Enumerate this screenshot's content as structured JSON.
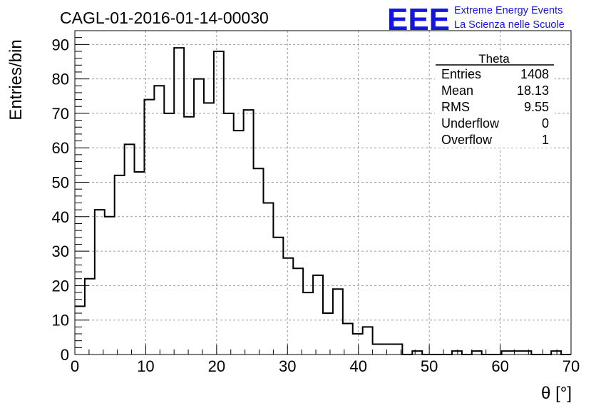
{
  "header": {
    "run_title": "CAGL-01-2016-01-14-00030",
    "logo_letters": "EEE",
    "project_line1": "Extreme Energy Events",
    "project_line2": "La Scienza nelle Scuole",
    "accent_color": "#1515e0"
  },
  "stats_box": {
    "title": "Theta",
    "rows": [
      {
        "label": "Entries",
        "value": "1408"
      },
      {
        "label": "Mean",
        "value": "18.13"
      },
      {
        "label": "RMS",
        "value": "9.55"
      },
      {
        "label": "Underflow",
        "value": "0"
      },
      {
        "label": "Overflow",
        "value": "1"
      }
    ]
  },
  "chart_data": {
    "type": "bar",
    "style": "step-histogram",
    "title": "CAGL-01-2016-01-14-00030",
    "xlabel": "θ [°]",
    "ylabel": "Entries/bin",
    "xlim": [
      0,
      70
    ],
    "ylim": [
      0,
      94
    ],
    "bin_width": 1.4,
    "grid": true,
    "x_ticks": [
      0,
      10,
      20,
      30,
      40,
      50,
      60,
      70
    ],
    "y_ticks": [
      0,
      10,
      20,
      30,
      40,
      50,
      60,
      70,
      80,
      90
    ],
    "values": [
      14,
      22,
      42,
      40,
      52,
      61,
      53,
      74,
      78,
      70,
      89,
      69,
      80,
      73,
      88,
      70,
      65,
      71,
      54,
      44,
      34,
      28,
      25,
      18,
      23,
      12,
      19,
      9,
      6,
      8,
      3,
      3,
      3,
      0,
      1,
      0,
      0,
      0,
      1,
      0,
      1,
      0,
      0,
      1,
      1,
      1,
      0,
      0,
      1,
      0
    ]
  }
}
